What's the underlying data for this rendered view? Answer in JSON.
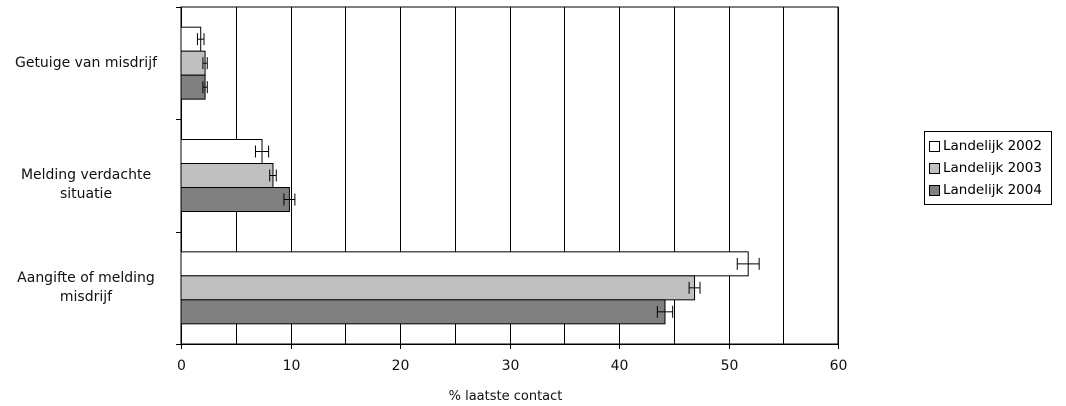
{
  "chart_data": {
    "type": "bar",
    "orientation": "horizontal",
    "categories": [
      "Getuige van misdrijf",
      "Melding verdachte situatie",
      "Aangifte of melding misdrijf"
    ],
    "category_lines": [
      [
        "Getuige van misdrijf"
      ],
      [
        "Melding verdachte situatie"
      ],
      [
        "Aangifte of melding",
        "misdrijf"
      ]
    ],
    "series": [
      {
        "name": "Landelijk 2002",
        "color": "#ffffff",
        "values": [
          1.8,
          7.4,
          51.8
        ],
        "error": [
          0.3,
          0.6,
          1.0
        ]
      },
      {
        "name": "Landelijk 2003",
        "color": "#c0c0c0",
        "values": [
          2.2,
          8.4,
          46.9
        ],
        "error": [
          0.2,
          0.3,
          0.5
        ]
      },
      {
        "name": "Landelijk 2004",
        "color": "#808080",
        "values": [
          2.2,
          9.9,
          44.2
        ],
        "error": [
          0.2,
          0.5,
          0.7
        ]
      }
    ],
    "xlabel": "% laatste contact",
    "xlim": [
      0,
      60
    ],
    "xticks": [
      0,
      10,
      20,
      30,
      40,
      50,
      60
    ],
    "grid_lines": [
      5,
      10,
      15,
      20,
      25,
      30,
      35,
      40,
      45,
      50,
      55,
      60
    ],
    "grid": true,
    "legend_position": "right"
  }
}
